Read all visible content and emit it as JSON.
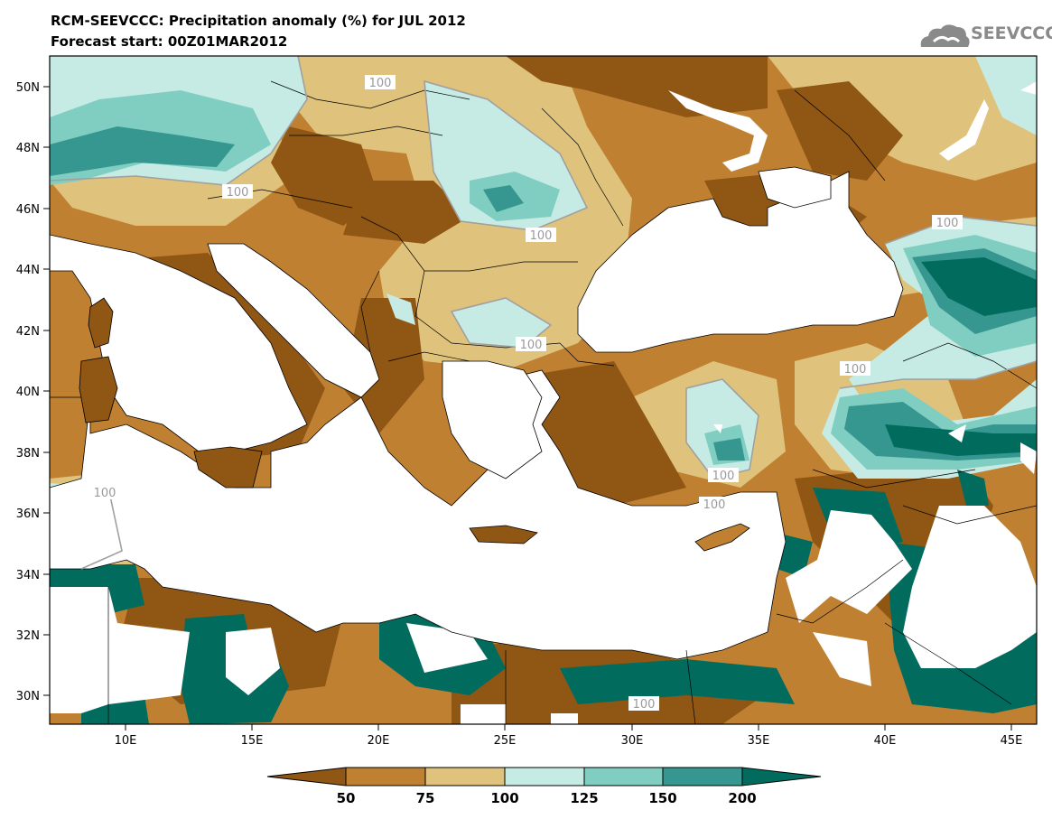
{
  "header": {
    "title": "RCM-SEEVCCC: Precipitation anomaly (%) for JUL 2012",
    "subtitle": "Forecast start: 00Z01MAR2012"
  },
  "logo": {
    "text": "SEEVCCC",
    "icon": "cloud-icon"
  },
  "map": {
    "lat_labels": [
      "50N",
      "48N",
      "46N",
      "44N",
      "42N",
      "40N",
      "38N",
      "36N",
      "34N",
      "32N",
      "30N"
    ],
    "lon_labels": [
      "10E",
      "15E",
      "20E",
      "25E",
      "30E",
      "35E",
      "40E",
      "45E"
    ],
    "contour_labels": [
      "100",
      "100",
      "100",
      "100",
      "100",
      "100",
      "100",
      "100",
      "100",
      "100"
    ],
    "colors": {
      "below_50": "#8f5614",
      "50_75": "#bf8032",
      "75_100": "#dfc27c",
      "100_125": "#c6ebe4",
      "125_150": "#80cdc1",
      "150_200": "#35978f",
      "above_200": "#016b5e",
      "sea": "#ffffff"
    }
  },
  "colorbar": {
    "labels": [
      "50",
      "75",
      "100",
      "125",
      "150",
      "200"
    ]
  }
}
